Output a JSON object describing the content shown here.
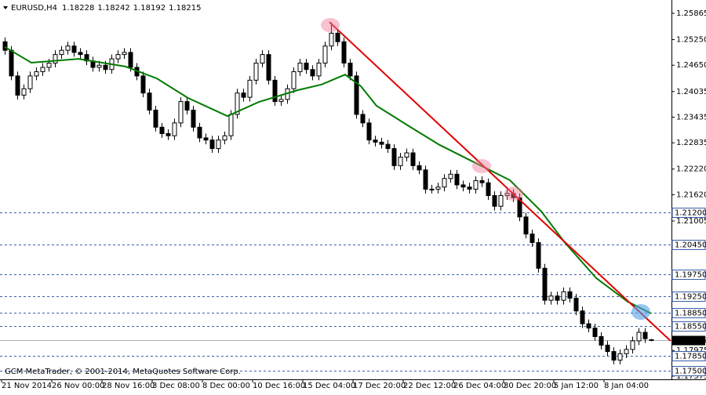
{
  "chart_data": {
    "type": "candlestick",
    "symbol": "EURUSD,H4",
    "footer": "GCM MetaTrader, © 2001-2014, MetaQuotes Software Corp.",
    "ylim": [
      1.173,
      1.26085
    ],
    "yticks": [
      1.25865,
      {
        "value": 1.2525,
        "label": "1.25250"
      },
      {
        "value": 1.2465,
        "label": "1.24650"
      },
      1.24035,
      1.23435,
      1.22835,
      {
        "value": 1.2222,
        "label": "1.22220"
      },
      {
        "value": 1.2162,
        "label": "1.21620"
      },
      1.21005,
      1.17975,
      1.17375
    ],
    "levels": [
      {
        "value": 1.212,
        "label": "1.21200"
      },
      {
        "value": 1.2045,
        "label": "1.20450"
      },
      {
        "value": 1.1975,
        "label": "1.19750"
      },
      {
        "value": 1.1925,
        "label": "1.19250"
      },
      {
        "value": 1.1885,
        "label": "1.18850"
      },
      {
        "value": 1.1855,
        "label": "1.18550"
      },
      {
        "value": 1.1785,
        "label": "1.17850"
      },
      {
        "value": 1.175,
        "label": "1.17500"
      }
    ],
    "level_color": "#3a5fa8",
    "categories": [
      "21 Nov 2014",
      null,
      null,
      null,
      null,
      null,
      null,
      null,
      "26 Nov 00:00",
      null,
      null,
      null,
      null,
      null,
      null,
      null,
      "28 Nov 16:00",
      null,
      null,
      null,
      null,
      null,
      null,
      null,
      "3 Dec 08:00",
      null,
      null,
      null,
      null,
      null,
      null,
      null,
      "8 Dec 00:00",
      null,
      null,
      null,
      null,
      null,
      null,
      null,
      "10 Dec 16:00",
      null,
      null,
      null,
      null,
      null,
      null,
      null,
      "15 Dec 04:00",
      null,
      null,
      null,
      null,
      null,
      null,
      null,
      "17 Dec 20:00",
      null,
      null,
      null,
      null,
      null,
      null,
      null,
      "22 Dec 12:00",
      null,
      null,
      null,
      null,
      null,
      null,
      null,
      "26 Dec 04:00",
      null,
      null,
      null,
      null,
      null,
      null,
      null,
      "30 Dec 20:00",
      null,
      null,
      null,
      null,
      null,
      null,
      null,
      "5 Jan 12:00",
      null,
      null,
      null,
      null,
      null,
      null,
      null,
      "8 Jan 04:00",
      null,
      null,
      null,
      null,
      null,
      null,
      null
    ],
    "ohlc": [
      [
        1.252,
        1.253,
        1.249,
        1.25
      ],
      [
        1.25,
        1.251,
        1.243,
        1.244
      ],
      [
        1.244,
        1.245,
        1.2385,
        1.2395
      ],
      [
        1.2395,
        1.242,
        1.2385,
        1.241
      ],
      [
        1.241,
        1.245,
        1.24,
        1.244
      ],
      [
        1.244,
        1.246,
        1.243,
        1.245
      ],
      [
        1.245,
        1.247,
        1.244,
        1.246
      ],
      [
        1.246,
        1.248,
        1.245,
        1.247
      ],
      [
        1.247,
        1.25,
        1.246,
        1.249
      ],
      [
        1.249,
        1.251,
        1.248,
        1.25
      ],
      [
        1.25,
        1.252,
        1.249,
        1.251
      ],
      [
        1.251,
        1.252,
        1.2485,
        1.2495
      ],
      [
        1.2495,
        1.2505,
        1.248,
        1.249
      ],
      [
        1.249,
        1.25,
        1.2465,
        1.2475
      ],
      [
        1.2475,
        1.2485,
        1.245,
        1.246
      ],
      [
        1.246,
        1.2475,
        1.245,
        1.2465
      ],
      [
        1.2465,
        1.2475,
        1.2445,
        1.2455
      ],
      [
        1.2455,
        1.249,
        1.2445,
        1.248
      ],
      [
        1.248,
        1.25,
        1.247,
        1.249
      ],
      [
        1.249,
        1.2505,
        1.248,
        1.2495
      ],
      [
        1.2495,
        1.2505,
        1.245,
        1.246
      ],
      [
        1.246,
        1.247,
        1.243,
        1.244
      ],
      [
        1.244,
        1.245,
        1.239,
        1.24
      ],
      [
        1.24,
        1.241,
        1.235,
        1.236
      ],
      [
        1.236,
        1.237,
        1.231,
        1.232
      ],
      [
        1.232,
        1.233,
        1.2295,
        1.2305
      ],
      [
        1.2305,
        1.2315,
        1.229,
        1.23
      ],
      [
        1.23,
        1.234,
        1.229,
        1.233
      ],
      [
        1.233,
        1.239,
        1.232,
        1.238
      ],
      [
        1.238,
        1.239,
        1.235,
        1.236
      ],
      [
        1.236,
        1.237,
        1.231,
        1.232
      ],
      [
        1.232,
        1.233,
        1.2285,
        1.2295
      ],
      [
        1.2295,
        1.2305,
        1.228,
        1.229
      ],
      [
        1.229,
        1.23,
        1.226,
        1.227
      ],
      [
        1.227,
        1.23,
        1.226,
        1.229
      ],
      [
        1.229,
        1.231,
        1.228,
        1.23
      ],
      [
        1.23,
        1.236,
        1.229,
        1.235
      ],
      [
        1.235,
        1.241,
        1.234,
        1.24
      ],
      [
        1.24,
        1.241,
        1.238,
        1.239
      ],
      [
        1.239,
        1.244,
        1.238,
        1.243
      ],
      [
        1.243,
        1.248,
        1.242,
        1.247
      ],
      [
        1.247,
        1.25,
        1.246,
        1.249
      ],
      [
        1.249,
        1.25,
        1.242,
        1.243
      ],
      [
        1.243,
        1.244,
        1.237,
        1.238
      ],
      [
        1.238,
        1.2395,
        1.237,
        1.2385
      ],
      [
        1.2385,
        1.242,
        1.2375,
        1.241
      ],
      [
        1.241,
        1.246,
        1.24,
        1.245
      ],
      [
        1.245,
        1.248,
        1.244,
        1.247
      ],
      [
        1.247,
        1.248,
        1.2445,
        1.2455
      ],
      [
        1.2455,
        1.2465,
        1.243,
        1.244
      ],
      [
        1.244,
        1.248,
        1.243,
        1.247
      ],
      [
        1.247,
        1.252,
        1.246,
        1.251
      ],
      [
        1.251,
        1.2565,
        1.25,
        1.254
      ],
      [
        1.254,
        1.255,
        1.251,
        1.252
      ],
      [
        1.252,
        1.253,
        1.246,
        1.247
      ],
      [
        1.247,
        1.248,
        1.243,
        1.244
      ],
      [
        1.244,
        1.245,
        1.234,
        1.235
      ],
      [
        1.235,
        1.236,
        1.232,
        1.233
      ],
      [
        1.233,
        1.234,
        1.228,
        1.229
      ],
      [
        1.229,
        1.23,
        1.2275,
        1.2285
      ],
      [
        1.2285,
        1.2295,
        1.227,
        1.228
      ],
      [
        1.228,
        1.229,
        1.226,
        1.227
      ],
      [
        1.227,
        1.228,
        1.222,
        1.223
      ],
      [
        1.223,
        1.226,
        1.222,
        1.225
      ],
      [
        1.225,
        1.227,
        1.224,
        1.226
      ],
      [
        1.226,
        1.227,
        1.222,
        1.223
      ],
      [
        1.223,
        1.224,
        1.221,
        1.222
      ],
      [
        1.222,
        1.223,
        1.2165,
        1.2175
      ],
      [
        1.2175,
        1.2185,
        1.2165,
        1.2175
      ],
      [
        1.2175,
        1.219,
        1.2165,
        1.218
      ],
      [
        1.218,
        1.221,
        1.217,
        1.22
      ],
      [
        1.22,
        1.222,
        1.219,
        1.221
      ],
      [
        1.221,
        1.222,
        1.2175,
        1.2185
      ],
      [
        1.2185,
        1.2195,
        1.217,
        1.218
      ],
      [
        1.218,
        1.219,
        1.2165,
        1.2175
      ],
      [
        1.2175,
        1.2205,
        1.2165,
        1.2195
      ],
      [
        1.2195,
        1.2205,
        1.218,
        1.219
      ],
      [
        1.219,
        1.22,
        1.215,
        1.216
      ],
      [
        1.216,
        1.217,
        1.2125,
        1.2135
      ],
      [
        1.2135,
        1.217,
        1.2125,
        1.216
      ],
      [
        1.216,
        1.2175,
        1.215,
        1.2165
      ],
      [
        1.2165,
        1.2175,
        1.2145,
        1.2155
      ],
      [
        1.2155,
        1.2165,
        1.21,
        1.211
      ],
      [
        1.211,
        1.212,
        1.206,
        1.207
      ],
      [
        1.207,
        1.208,
        1.204,
        1.205
      ],
      [
        1.205,
        1.206,
        1.198,
        1.199
      ],
      [
        1.199,
        1.2,
        1.1905,
        1.1915
      ],
      [
        1.1915,
        1.1935,
        1.1905,
        1.1925
      ],
      [
        1.1925,
        1.1935,
        1.1905,
        1.1915
      ],
      [
        1.1915,
        1.1945,
        1.1905,
        1.1935
      ],
      [
        1.1935,
        1.1945,
        1.191,
        1.192
      ],
      [
        1.192,
        1.193,
        1.188,
        1.189
      ],
      [
        1.189,
        1.19,
        1.185,
        1.186
      ],
      [
        1.186,
        1.187,
        1.184,
        1.185
      ],
      [
        1.185,
        1.186,
        1.182,
        1.183
      ],
      [
        1.183,
        1.184,
        1.18,
        1.181
      ],
      [
        1.181,
        1.182,
        1.1785,
        1.1795
      ],
      [
        1.1795,
        1.1805,
        1.1765,
        1.1775
      ],
      [
        1.1775,
        1.18,
        1.1765,
        1.179
      ],
      [
        1.179,
        1.181,
        1.178,
        1.18
      ],
      [
        1.18,
        1.183,
        1.179,
        1.182
      ],
      [
        1.182,
        1.185,
        1.181,
        1.184
      ],
      [
        1.184,
        1.185,
        1.1815,
        1.1825
      ],
      [
        1.18228,
        1.18242,
        1.18192,
        1.18215
      ]
    ],
    "candle_color": "#000000",
    "moving_average": {
      "color": "#007a00",
      "x": [
        0,
        4.25,
        11.75,
        19.25,
        24.25,
        29.25,
        35.5,
        40.5,
        46.75,
        50.5,
        54.25,
        56.75,
        59.25,
        64.25,
        69.25,
        74.25,
        80.5,
        85.5,
        89.25,
        94.25,
        99.25,
        103
      ],
      "values": [
        1.2508,
        1.2471,
        1.248,
        1.2462,
        1.2434,
        1.2388,
        1.2346,
        1.2379,
        1.2407,
        1.242,
        1.2443,
        1.2416,
        1.237,
        1.2324,
        1.2279,
        1.2242,
        1.2196,
        1.2123,
        1.205,
        1.1967,
        1.1912,
        1.1884
      ]
    },
    "trendline": {
      "color": "#e00000",
      "x": [
        51.75,
        106.1
      ],
      "values": [
        1.2566,
        1.182
      ]
    }
  }
}
